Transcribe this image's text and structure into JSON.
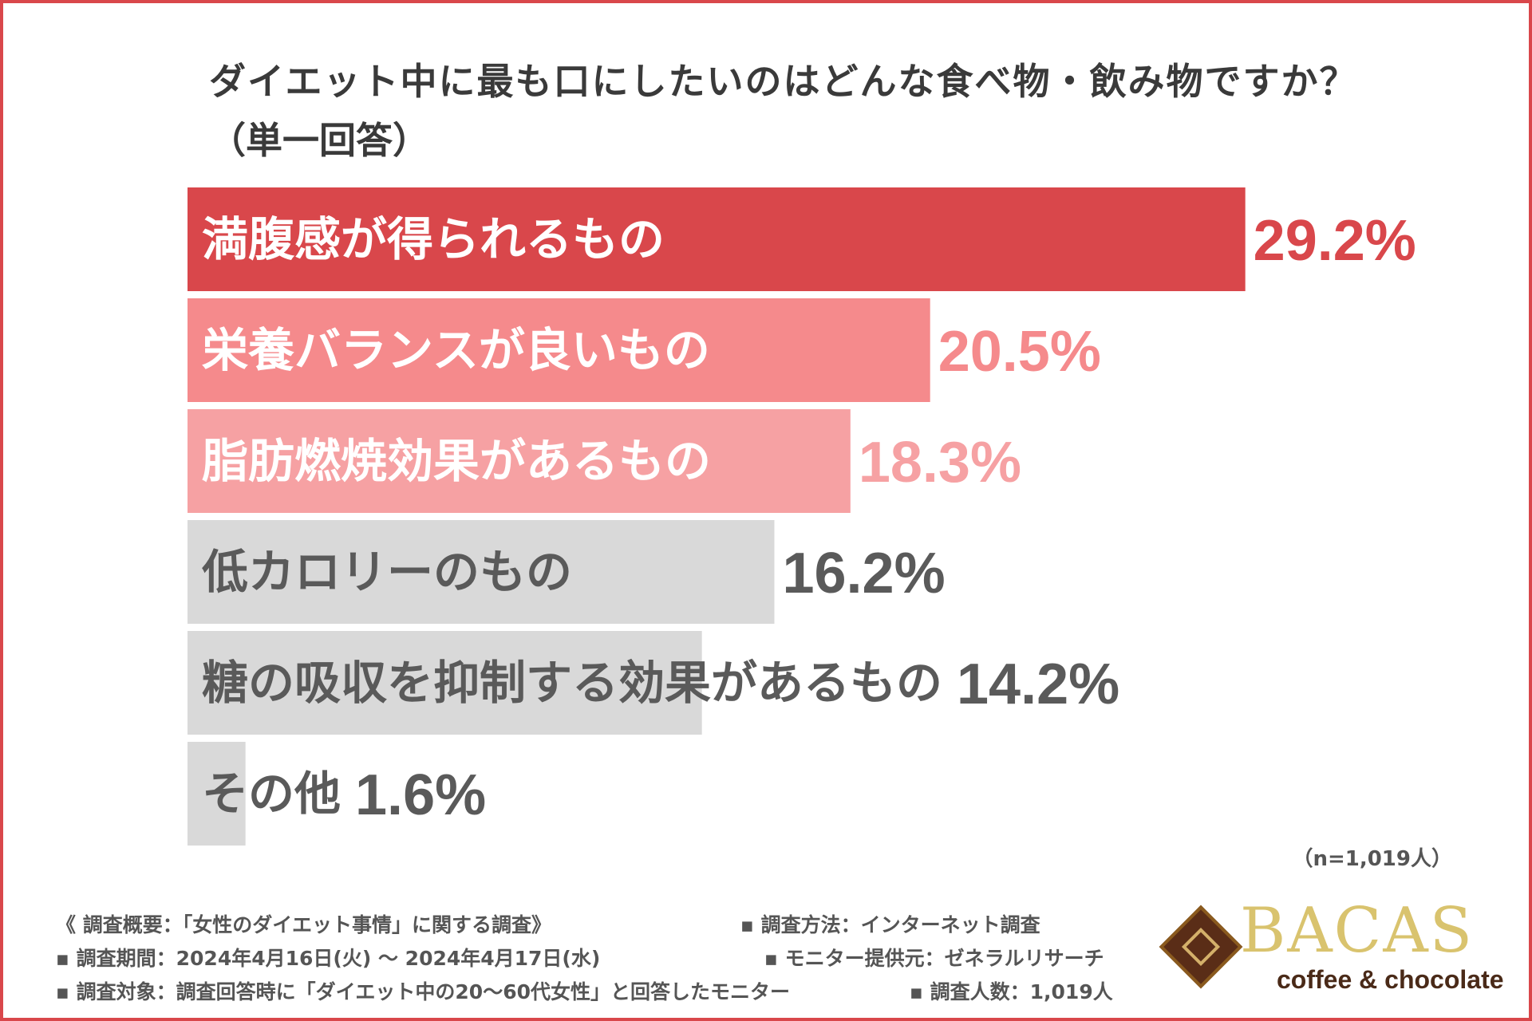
{
  "chart_data": {
    "type": "bar",
    "orientation": "horizontal",
    "title": "ダイエット中に最も口にしたいのはどんな食べ物・飲み物ですか？",
    "subtitle": "（単一回答）",
    "categories": [
      "満腹感が得られるもの",
      "栄養バランスが良いもの",
      "脂肪燃焼効果があるもの",
      "低カロリーのもの",
      "糖の吸収を抑制する効果があるもの",
      "その他"
    ],
    "values": [
      29.2,
      20.5,
      18.3,
      16.2,
      14.2,
      1.6
    ],
    "value_labels": [
      "29.2%",
      "20.5%",
      "18.3%",
      "16.2%",
      "14.2%",
      "1.6%"
    ],
    "bar_colors": [
      "#d9474b",
      "#f58a8c",
      "#f6a1a3",
      "#d9d9d9",
      "#d9d9d9",
      "#d9d9d9"
    ],
    "label_colors": [
      "#ffffff",
      "#ffffff",
      "#ffffff",
      "#5a5a5a",
      "#5a5a5a",
      "#5a5a5a"
    ],
    "value_colors": [
      "#d9474b",
      "#f58a8c",
      "#f6a1a3",
      "#5a5a5a",
      "#5a5a5a",
      "#5a5a5a"
    ],
    "legend": "none",
    "grid": false
  },
  "sample_size": "（n=1,019人）",
  "notes": {
    "overview": "《 調査概要：「女性のダイエット事情」に関する調査》",
    "period": "▪ 調査期間：2024年4月16日(火) ～ 2024年4月17日(水)",
    "target": "▪ 調査対象：調査回答時に「ダイエット中の20～60代女性」と回答したモニター",
    "method": "▪ 調査方法：インターネット調査",
    "provider": "▪ モニター提供元：ゼネラルリサーチ",
    "count": "▪ 調査人数：1,019人"
  },
  "logo": {
    "name": "BACAS",
    "tagline": "coffee & chocolate"
  },
  "colors": {
    "frame": "#d9474b",
    "text": "#3a3a3a"
  }
}
